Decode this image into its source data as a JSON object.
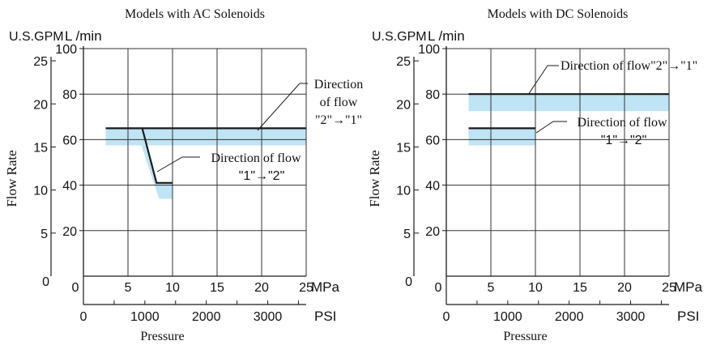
{
  "chart_data": [
    {
      "type": "line",
      "title": "Models with AC Solenoids",
      "ylabel": "Flow Rate",
      "xlabel": "Pressure",
      "unit_lpm": "L /min",
      "unit_gpm": "U.S.GPM",
      "unit_mpa": "MPa",
      "unit_psi": "PSI",
      "xlim_mpa": [
        0,
        25
      ],
      "ylim_lpm": [
        0,
        100
      ],
      "grid": true,
      "mpa_ticks": [
        "0",
        "5",
        "10",
        "15",
        "20",
        "25"
      ],
      "psi_ticks": [
        "0",
        "1000",
        "2000",
        "3000"
      ],
      "lpm_ticks": [
        "20",
        "40",
        "60",
        "80",
        "100"
      ],
      "gpm_ticks": [
        "0",
        "5",
        "10",
        "15",
        "20",
        "25"
      ],
      "series": [
        {
          "label": "Direction of flow \"2\"→\"1\"",
          "label_lines": [
            "Direction",
            "of flow",
            "\"2\"→\"1\""
          ],
          "x": [
            2.5,
            25
          ],
          "y": [
            65,
            65
          ],
          "band": [
            [
              2.5,
              57.5,
              25,
              65
            ]
          ]
        },
        {
          "label": "Direction of flow \"1\"→\"2\"",
          "label_lines": [
            "Direction of flow",
            "\"1\"→\"2\""
          ],
          "x": [
            6.6,
            8.2,
            10.0
          ],
          "y": [
            65,
            41,
            41
          ],
          "band": [
            [
              2.5,
              57.5,
              6.5,
              57.5,
              8.5,
              34,
              10,
              34,
              10,
              41,
              8.1,
              41,
              6.6,
              65
            ]
          ]
        }
      ]
    },
    {
      "type": "line",
      "title": "Models with DC Solenoids",
      "ylabel": "Flow Rate",
      "xlabel": "Pressure",
      "unit_lpm": "L /min",
      "unit_gpm": "U.S.GPM",
      "unit_mpa": "MPa",
      "unit_psi": "PSI",
      "xlim_mpa": [
        0,
        25
      ],
      "ylim_lpm": [
        0,
        100
      ],
      "grid": true,
      "mpa_ticks": [
        "0",
        "5",
        "10",
        "15",
        "20",
        "25"
      ],
      "psi_ticks": [
        "0",
        "1000",
        "2000",
        "3000"
      ],
      "lpm_ticks": [
        "20",
        "40",
        "60",
        "80",
        "100"
      ],
      "gpm_ticks": [
        "0",
        "5",
        "10",
        "15",
        "20",
        "25"
      ],
      "series": [
        {
          "label": "Direction of flow\"2\"→\"1\"",
          "label_lines": [
            "Direction of flow\"2\"→\"1\""
          ],
          "x": [
            2.5,
            25
          ],
          "y": [
            80,
            80
          ],
          "band": [
            [
              2.5,
              72.5,
              25,
              80
            ]
          ]
        },
        {
          "label": "Direction of flow \"1\"→\"2\"",
          "label_lines": [
            "Direction of flow",
            "\"1\"→\"2\""
          ],
          "x": [
            2.5,
            10
          ],
          "y": [
            65,
            65
          ],
          "band": [
            [
              2.5,
              57.5,
              10,
              65
            ]
          ]
        }
      ]
    }
  ],
  "colors": {
    "band": "#bfe4f4",
    "line": "#1a1a1a",
    "grid": "#333333"
  }
}
